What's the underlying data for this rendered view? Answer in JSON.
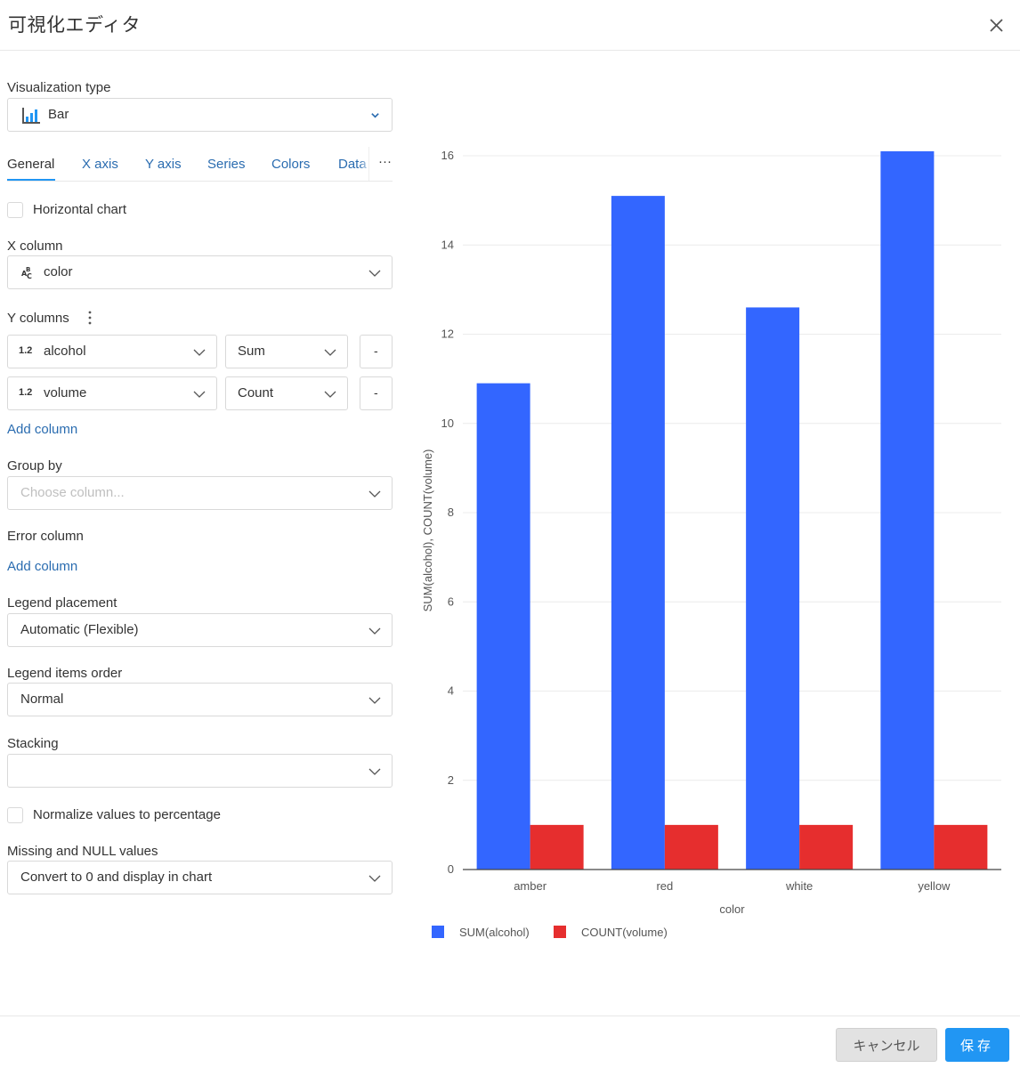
{
  "dialog": {
    "title": "可視化エディタ",
    "cancel_label": "キャンセル",
    "save_label": "保存"
  },
  "editor": {
    "viz_type_label": "Visualization type",
    "viz_type_value": "Bar",
    "tabs": [
      {
        "label": "General",
        "active": true
      },
      {
        "label": "X axis",
        "active": false
      },
      {
        "label": "Y axis",
        "active": false
      },
      {
        "label": "Series",
        "active": false
      },
      {
        "label": "Colors",
        "active": false
      },
      {
        "label": "Data",
        "active": false
      }
    ],
    "more_tabs": "···",
    "horizontal_chart_label": "Horizontal chart",
    "horizontal_chart_checked": false,
    "x_column_label": "X column",
    "x_column_type_icon": "text-type-icon",
    "x_column_value": "color",
    "y_columns_label": "Y columns",
    "y_columns": [
      {
        "type": "1.2",
        "column": "alcohol",
        "aggregation": "Sum",
        "remove": "-"
      },
      {
        "type": "1.2",
        "column": "volume",
        "aggregation": "Count",
        "remove": "-"
      }
    ],
    "add_column_label": "Add column",
    "group_by_label": "Group by",
    "group_by_placeholder": "Choose column...",
    "error_column_label": "Error column",
    "error_add_column_label": "Add column",
    "legend_placement_label": "Legend placement",
    "legend_placement_value": "Automatic (Flexible)",
    "legend_order_label": "Legend items order",
    "legend_order_value": "Normal",
    "stacking_label": "Stacking",
    "stacking_value": "",
    "normalize_label": "Normalize values to percentage",
    "normalize_checked": false,
    "missing_label": "Missing and NULL values",
    "missing_value": "Convert to 0 and display in chart"
  },
  "chart_data": {
    "type": "bar",
    "categories": [
      "amber",
      "red",
      "white",
      "yellow"
    ],
    "series": [
      {
        "name": "SUM(alcohol)",
        "values": [
          10.9,
          15.1,
          12.6,
          16.1
        ],
        "color": "#3366ff"
      },
      {
        "name": "COUNT(volume)",
        "values": [
          1,
          1,
          1,
          1
        ],
        "color": "#e62e2e"
      }
    ],
    "xlabel": "color",
    "ylabel": "SUM(alcohol), COUNT(volume)",
    "ylim": [
      0,
      16
    ],
    "yticks": [
      0,
      2,
      4,
      6,
      8,
      10,
      12,
      14,
      16
    ],
    "grid": true,
    "legend_placement": "bottom-left"
  }
}
